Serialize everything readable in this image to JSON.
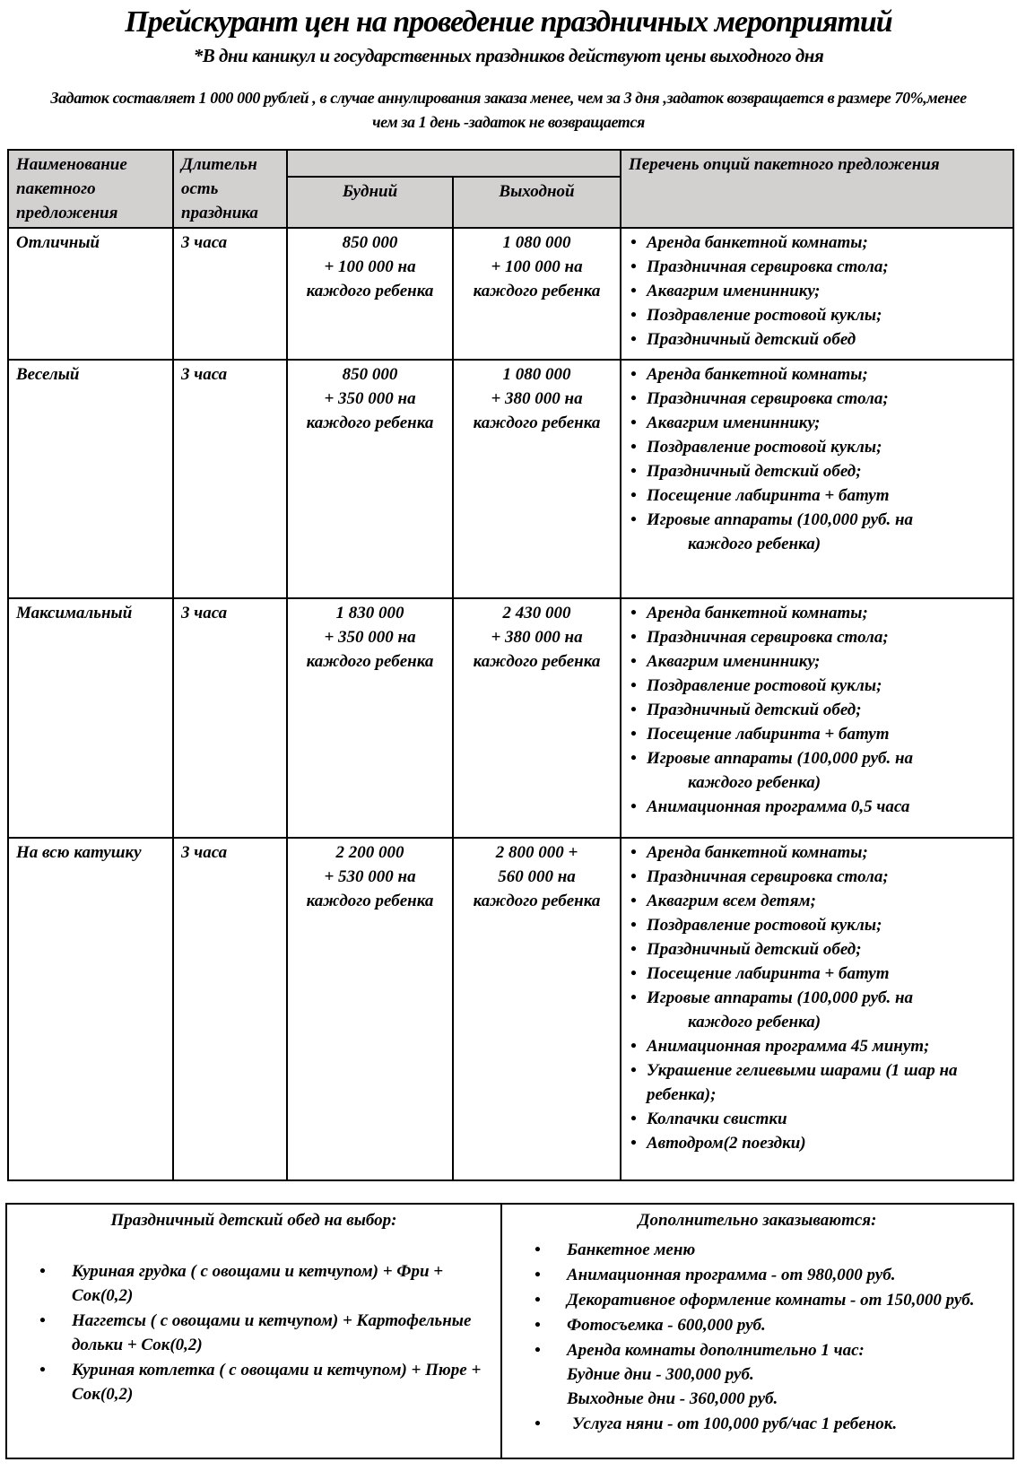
{
  "title": "Прейскурант цен на проведение праздничных мероприятий",
  "subtitle": "*В дни каникул и государственных праздников действуют цены выходного дня",
  "deposit": "Задаток составляет 1 000 000 рублей , в случае аннулирования заказа менее, чем за 3 дня ,задаток возвращается в размере 70%,менее чем за 1 день -задаток не возвращается",
  "header": {
    "name": "Наименование пакетного предложения",
    "duration": "Длительн ость праздника",
    "weekday": "Будний",
    "weekend": "Выходной",
    "options": "Перечень опций пакетного предложения",
    "header_bg": "#d3d0d0"
  },
  "rows": [
    {
      "name": "Отличный",
      "duration": "3 часа",
      "weekday": [
        "850 000",
        "+ 100 000 на",
        "каждого ребенка"
      ],
      "weekend": [
        "1 080 000",
        "+ 100 000 на",
        "каждого ребенка"
      ],
      "options": [
        "Аренда банкетной комнаты;",
        "Праздничная сервировка стола;",
        "Аквагрим имениннику;",
        "Поздравление ростовой куклы;",
        "Праздничный детский обед"
      ]
    },
    {
      "name": "Веселый",
      "duration": "3 часа",
      "weekday": [
        "850 000",
        "+ 350 000 на",
        "каждого ребенка"
      ],
      "weekend": [
        "1 080 000",
        "+ 380 000 на",
        "каждого ребенка"
      ],
      "options": [
        "Аренда банкетной комнаты;",
        "Праздничная сервировка стола;",
        "Аквагрим имениннику;",
        "Поздравление ростовой куклы;",
        "Праздничный детский обед;",
        "Посещение лабиринта + батут",
        "Игровые аппараты (100,000 руб. на",
        "каждого ребенка)"
      ]
    },
    {
      "name": "Максимальный",
      "duration": "3 часа",
      "weekday": [
        "1 830 000",
        "+ 350 000 на",
        "каждого ребенка"
      ],
      "weekend": [
        "2 430 000",
        "+ 380 000 на",
        "каждого ребенка"
      ],
      "options": [
        "Аренда банкетной комнаты;",
        "Праздничная сервировка стола;",
        "Аквагрим имениннику;",
        "Поздравление ростовой куклы;",
        "Праздничный детский обед;",
        "Посещение лабиринта + батут",
        "Игровые аппараты (100,000 руб. на",
        "каждого ребенка)",
        "Анимационная программа 0,5 часа"
      ]
    },
    {
      "name": "На всю катушку",
      "duration": "3 часа",
      "weekday": [
        "2 200 000",
        "+ 530 000 на",
        "каждого ребенка"
      ],
      "weekend": [
        "2 800 000 +",
        "560 000 на",
        "каждого ребенка"
      ],
      "options": [
        "Аренда банкетной комнаты;",
        "Праздничная сервировка стола;",
        "Аквагрим всем детям;",
        "Поздравление ростовой куклы;",
        "Праздничный детский обед;",
        "Посещение лабиринта + батут",
        "Игровые аппараты (100,000 руб. на",
        "каждого ребенка)",
        "Анимационная программа 45 минут;",
        "Украшение гелиевыми шарами (1 шар на",
        "ребенка);",
        "Колпачки свистки",
        "Автодром(2 поездки)"
      ]
    }
  ],
  "lunch": {
    "title": "Праздничный детский обед на выбор:",
    "items": [
      "Куриная грудка ( с овощами и кетчупом) + Фри + Сок(0,2)",
      "Наггетсы ( с овощами и кетчупом) + Картофельные дольки + Сок(0,2)",
      "Куриная котлетка ( с овощами и кетчупом) + Пюре + Сок(0,2)"
    ]
  },
  "extra": {
    "title": "Дополнительно заказываются:",
    "items": [
      "Банкетное меню",
      "Анимационная программа - от 980,000 руб.",
      "Декоративное оформление комнаты - от 150,000 руб.",
      "Фотосъемка - 600,000 руб.",
      "Аренда комнаты дополнительно 1 час:"
    ],
    "rent_lines": [
      "Будние дни - 300,000 руб.",
      "Выходные дни - 360,000 руб."
    ],
    "nanny": "Услуга няни - от 100,000 руб/час 1 ребенок."
  }
}
